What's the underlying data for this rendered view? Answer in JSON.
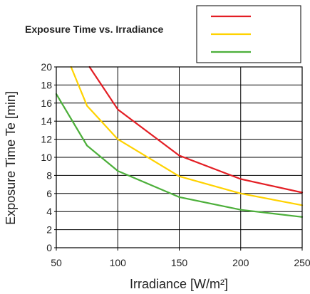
{
  "chart_data": {
    "type": "line",
    "title": "Exposure Time vs. Irradiance",
    "xlabel": "Irradiance [W/m²]",
    "ylabel": "Exposure Time Te [min]",
    "xlim": [
      50,
      250
    ],
    "ylim": [
      0,
      20
    ],
    "x_ticks": [
      50,
      100,
      150,
      200,
      250
    ],
    "y_ticks": [
      0,
      2,
      4,
      6,
      8,
      10,
      12,
      14,
      16,
      18,
      20
    ],
    "grid": true,
    "legend_position": "top-right",
    "series": [
      {
        "color": "#e31e24",
        "x": [
          77,
          100,
          150,
          200,
          250
        ],
        "y": [
          20,
          15.3,
          10.2,
          7.6,
          6.1
        ]
      },
      {
        "color": "#ffd200",
        "x": [
          62,
          75,
          100,
          150,
          200,
          250
        ],
        "y": [
          20,
          15.7,
          12.0,
          7.9,
          6.0,
          4.7
        ]
      },
      {
        "color": "#4caf3a",
        "x": [
          50,
          75,
          100,
          150,
          200,
          250
        ],
        "y": [
          17,
          11.3,
          8.5,
          5.6,
          4.2,
          3.4
        ]
      }
    ]
  }
}
